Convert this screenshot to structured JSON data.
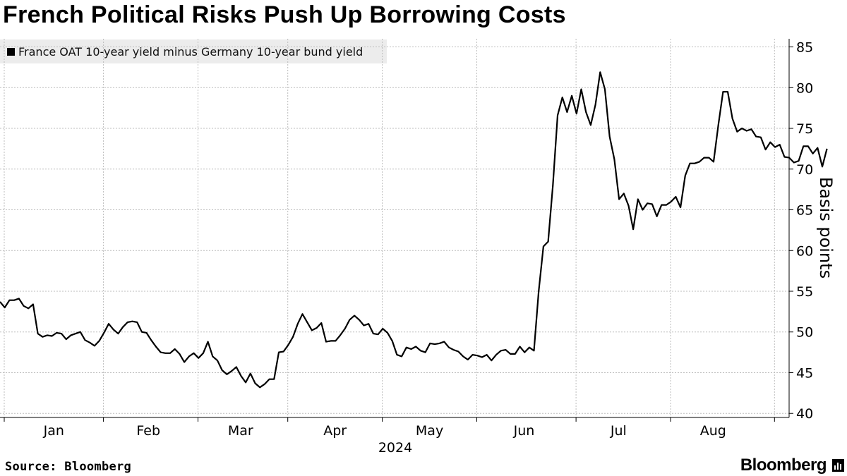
{
  "page": {
    "title": "French Political Risks Push Up Borrowing Costs",
    "legend_label": "France OAT 10-year yield minus Germany 10-year bund yield",
    "source": "Source: Bloomberg",
    "brand": "Bloomberg"
  },
  "chart_data": {
    "type": "line",
    "title": "French Political Risks Push Up Borrowing Costs",
    "xlabel": "2024",
    "ylabel": "Basis points",
    "ylim": [
      39.5,
      86
    ],
    "yticks": [
      40,
      45,
      50,
      55,
      60,
      65,
      70,
      75,
      80,
      85
    ],
    "xlim": [
      0,
      164
    ],
    "month_ticks": [
      {
        "label": "Jan",
        "pos": 10.5
      },
      {
        "label": "Feb",
        "pos": 30.5
      },
      {
        "label": "Mar",
        "pos": 50
      },
      {
        "label": "Apr",
        "pos": 70
      },
      {
        "label": "May",
        "pos": 90
      },
      {
        "label": "Jun",
        "pos": 110
      },
      {
        "label": "Jul",
        "pos": 130
      },
      {
        "label": "Aug",
        "pos": 150
      }
    ],
    "month_boundaries": [
      0,
      21,
      41,
      60,
      80,
      100,
      121,
      141,
      163
    ],
    "grid": true,
    "legend_position": "top-left",
    "series": [
      {
        "name": "France OAT 10-year yield minus Germany 10-year bund yield",
        "color": "#000000",
        "values": [
          53.7,
          53.0,
          53.9,
          53.9,
          54.1,
          53.2,
          52.9,
          53.4,
          49.8,
          49.4,
          49.6,
          49.5,
          49.9,
          49.8,
          49.1,
          49.6,
          49.8,
          50.0,
          49.0,
          48.7,
          48.3,
          48.9,
          49.9,
          51.0,
          50.3,
          49.8,
          50.6,
          51.2,
          51.3,
          51.2,
          50.0,
          49.9,
          49.0,
          48.2,
          47.5,
          47.4,
          47.4,
          47.9,
          47.3,
          46.3,
          47.0,
          47.4,
          46.8,
          47.4,
          48.8,
          47.0,
          46.5,
          45.3,
          44.8,
          45.2,
          45.7,
          44.6,
          43.8,
          44.9,
          43.7,
          43.2,
          43.6,
          44.2,
          44.2,
          47.5,
          47.6,
          48.4,
          49.4,
          51.0,
          52.2,
          51.2,
          50.2,
          50.5,
          51.1,
          48.8,
          48.9,
          48.9,
          49.6,
          50.4,
          51.5,
          52.0,
          51.5,
          50.8,
          51.0,
          49.8,
          49.7,
          50.4,
          49.9,
          48.9,
          47.2,
          47.0,
          48.1,
          47.9,
          48.2,
          47.7,
          47.5,
          48.6,
          48.5,
          48.6,
          48.8,
          48.1,
          47.8,
          47.6,
          47.0,
          46.6,
          47.2,
          47.1,
          46.9,
          47.2,
          46.5,
          47.2,
          47.7,
          47.8,
          47.3,
          47.3,
          48.2,
          47.5,
          48.1,
          47.7,
          55.0,
          60.5,
          61.1,
          68.0,
          76.6,
          78.8,
          77.0,
          79.0,
          76.8,
          79.8,
          77.0,
          75.4,
          77.9,
          81.9,
          79.8,
          74.0,
          71.2,
          66.3,
          67.0,
          65.5,
          62.6,
          66.3,
          65.0,
          65.8,
          65.7,
          64.2,
          65.6,
          65.6,
          66.0,
          66.6,
          65.3,
          69.2,
          70.7,
          70.7,
          70.9,
          71.4,
          71.4,
          70.9,
          75.4,
          79.5,
          79.5,
          76.2,
          74.6,
          75.0,
          74.7,
          74.9,
          74.0,
          73.9,
          72.4,
          73.3,
          72.7,
          73.0,
          71.5,
          71.4,
          70.8,
          71.0,
          72.8,
          72.8,
          71.9,
          72.6,
          70.3,
          72.5
        ]
      }
    ]
  }
}
